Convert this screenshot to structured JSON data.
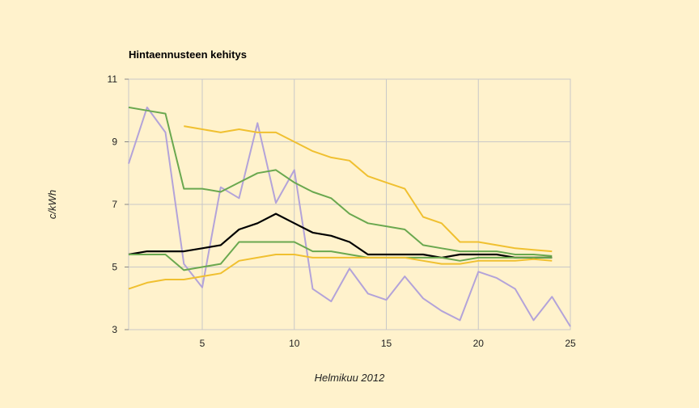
{
  "chart_data": {
    "type": "line",
    "title": "Hintaennusteen kehitys",
    "xlabel": "Helmikuu 2012",
    "ylabel": "c/kWh",
    "xlim": [
      1,
      25
    ],
    "ylim": [
      3,
      11
    ],
    "xticks": [
      5,
      10,
      15,
      20,
      25
    ],
    "yticks": [
      3,
      5,
      7,
      9,
      11
    ],
    "grid": true,
    "legend": "none",
    "series": [
      {
        "color": "#b3a3d9",
        "x": [
          1,
          2,
          3,
          4,
          5,
          6,
          7,
          8,
          9,
          10,
          11,
          12,
          13,
          14,
          15,
          16,
          17,
          18,
          19,
          20,
          21,
          22,
          23,
          24,
          25
        ],
        "values": [
          8.3,
          10.1,
          9.3,
          5.1,
          4.35,
          7.55,
          7.2,
          9.6,
          7.05,
          8.1,
          4.3,
          3.9,
          4.95,
          4.15,
          3.95,
          4.7,
          4.0,
          3.6,
          3.3,
          4.85,
          4.65,
          4.3,
          3.3,
          4.05,
          3.1
        ]
      },
      {
        "color": "#f0c030",
        "x": [
          4,
          5,
          6,
          7,
          8,
          9,
          10,
          11,
          12,
          13,
          14,
          15,
          16,
          17,
          18,
          19,
          20,
          21,
          22,
          23,
          24
        ],
        "values": [
          9.5,
          9.4,
          9.3,
          9.4,
          9.3,
          9.3,
          9.0,
          8.7,
          8.5,
          8.4,
          7.9,
          7.7,
          7.5,
          6.6,
          6.4,
          5.8,
          5.8,
          5.7,
          5.6,
          5.55,
          5.5
        ]
      },
      {
        "color": "#6aa84f",
        "x": [
          1,
          2,
          3,
          4,
          5,
          6,
          7,
          8,
          9,
          10,
          11,
          12,
          13,
          14,
          15,
          16,
          17,
          18,
          19,
          20,
          21,
          22,
          23,
          24
        ],
        "values": [
          10.1,
          10.0,
          9.9,
          7.5,
          7.5,
          7.4,
          7.7,
          8.0,
          8.1,
          7.7,
          7.4,
          7.2,
          6.7,
          6.4,
          6.3,
          6.2,
          5.7,
          5.6,
          5.5,
          5.5,
          5.5,
          5.4,
          5.4,
          5.35
        ]
      },
      {
        "color": "#000000",
        "x": [
          1,
          2,
          3,
          4,
          5,
          6,
          7,
          8,
          9,
          10,
          11,
          12,
          13,
          14,
          15,
          16,
          17,
          18,
          19,
          20,
          21,
          22,
          23,
          24
        ],
        "values": [
          5.4,
          5.5,
          5.5,
          5.5,
          5.6,
          5.7,
          6.2,
          6.4,
          6.7,
          6.4,
          6.1,
          6.0,
          5.8,
          5.4,
          5.4,
          5.4,
          5.4,
          5.3,
          5.4,
          5.4,
          5.4,
          5.3,
          5.3,
          5.3
        ]
      },
      {
        "color": "#6aa84f",
        "x": [
          1,
          2,
          3,
          4,
          5,
          6,
          7,
          8,
          9,
          10,
          11,
          12,
          13,
          14,
          15,
          16,
          17,
          18,
          19,
          20,
          21,
          22,
          23,
          24
        ],
        "values": [
          5.4,
          5.4,
          5.4,
          4.9,
          5.0,
          5.1,
          5.8,
          5.8,
          5.8,
          5.8,
          5.5,
          5.5,
          5.4,
          5.3,
          5.3,
          5.3,
          5.3,
          5.3,
          5.2,
          5.3,
          5.3,
          5.3,
          5.3,
          5.3
        ]
      },
      {
        "color": "#f0c030",
        "x": [
          1,
          2,
          3,
          4,
          5,
          6,
          7,
          8,
          9,
          10,
          11,
          12,
          13,
          14,
          15,
          16,
          17,
          18,
          19,
          20,
          21,
          22,
          23,
          24
        ],
        "values": [
          4.3,
          4.5,
          4.6,
          4.6,
          4.7,
          4.8,
          5.2,
          5.3,
          5.4,
          5.4,
          5.3,
          5.3,
          5.3,
          5.3,
          5.3,
          5.3,
          5.2,
          5.1,
          5.1,
          5.2,
          5.2,
          5.2,
          5.25,
          5.2
        ]
      }
    ]
  }
}
